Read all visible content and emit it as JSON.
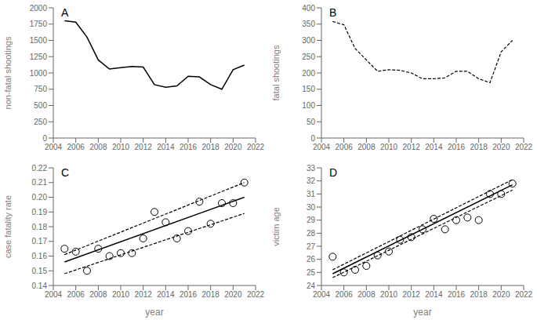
{
  "chart_data": [
    {
      "type": "line",
      "title": "A",
      "ylabel": "non-fatal shootings",
      "xlim": [
        2004,
        2022
      ],
      "xticks": [
        2004,
        2006,
        2008,
        2010,
        2012,
        2014,
        2016,
        2018,
        2020,
        2022
      ],
      "ylim": [
        0,
        2000
      ],
      "yticks": [
        0,
        250,
        500,
        750,
        1000,
        1250,
        1500,
        1750,
        2000
      ],
      "grid": false,
      "series": [
        {
          "x": [
            2005,
            2006,
            2007,
            2008,
            2009,
            2010,
            2011,
            2012,
            2013,
            2014,
            2015,
            2016,
            2017,
            2018,
            2019,
            2020,
            2021
          ],
          "values": [
            1800,
            1780,
            1550,
            1200,
            1060,
            1080,
            1100,
            1090,
            820,
            780,
            800,
            950,
            940,
            820,
            750,
            1050,
            1120
          ],
          "color": "#000000",
          "line_style": "solid"
        }
      ]
    },
    {
      "type": "line",
      "title": "B",
      "ylabel": "fatal shootings",
      "xlim": [
        2004,
        2022
      ],
      "xticks": [
        2004,
        2006,
        2008,
        2010,
        2012,
        2014,
        2016,
        2018,
        2020,
        2022
      ],
      "ylim": [
        0,
        400
      ],
      "yticks": [
        0,
        50,
        100,
        150,
        200,
        250,
        300,
        350,
        400
      ],
      "grid": false,
      "series": [
        {
          "x": [
            2005,
            2006,
            2007,
            2008,
            2009,
            2010,
            2011,
            2012,
            2013,
            2014,
            2015,
            2016,
            2017,
            2018,
            2019,
            2020,
            2021
          ],
          "values": [
            358,
            348,
            275,
            240,
            205,
            210,
            208,
            200,
            182,
            182,
            185,
            205,
            205,
            182,
            170,
            265,
            300
          ],
          "color": "#000000",
          "line_style": "dashed"
        }
      ]
    },
    {
      "type": "scatter",
      "title": "C",
      "xlabel": "year",
      "ylabel": "case fatality rate",
      "xlim": [
        2004,
        2022
      ],
      "xticks": [
        2004,
        2006,
        2008,
        2010,
        2012,
        2014,
        2016,
        2018,
        2020,
        2022
      ],
      "ylim": [
        0.14,
        0.22
      ],
      "yticks": [
        0.14,
        0.15,
        0.16,
        0.17,
        0.18,
        0.19,
        {
          "value": 0.2,
          "label": "0.20"
        },
        0.21,
        0.22
      ],
      "grid": false,
      "series": [
        {
          "type": "line",
          "x": [
            2005,
            2021
          ],
          "values": [
            0.156,
            0.2
          ],
          "color": "#000000",
          "line_style": "solid"
        },
        {
          "type": "line",
          "x": [
            2005,
            2021
          ],
          "values": [
            0.161,
            0.21
          ],
          "color": "#000000",
          "line_style": "dashed"
        },
        {
          "type": "line",
          "x": [
            2005,
            2021
          ],
          "values": [
            0.148,
            0.189
          ],
          "color": "#000000",
          "line_style": "dashed"
        },
        {
          "type": "scatter",
          "x": [
            2005,
            2006,
            2007,
            2008,
            2009,
            2010,
            2011,
            2012,
            2013,
            2014,
            2015,
            2016,
            2017,
            2018,
            2019,
            2020,
            2021
          ],
          "values": [
            0.165,
            0.163,
            0.15,
            0.165,
            0.16,
            0.162,
            0.162,
            0.172,
            0.19,
            0.183,
            0.172,
            0.177,
            0.197,
            0.182,
            0.196,
            0.196,
            0.21
          ],
          "color": "#000000",
          "marker": "circle"
        }
      ]
    },
    {
      "type": "scatter",
      "title": "D",
      "xlabel": "year",
      "ylabel": "victim age",
      "xlim": [
        2004,
        2022
      ],
      "xticks": [
        2004,
        2006,
        2008,
        2010,
        2012,
        2014,
        2016,
        2018,
        2020,
        2022
      ],
      "ylim": [
        24,
        33
      ],
      "yticks": [
        24,
        25,
        26,
        27,
        28,
        29,
        30,
        31,
        32,
        33
      ],
      "grid": false,
      "series": [
        {
          "type": "line",
          "x": [
            2005,
            2021
          ],
          "values": [
            24.9,
            31.7
          ],
          "color": "#000000",
          "line_style": "solid"
        },
        {
          "type": "line",
          "x": [
            2005,
            2021
          ],
          "values": [
            25.2,
            32.1
          ],
          "color": "#000000",
          "line_style": "dashed"
        },
        {
          "type": "line",
          "x": [
            2005,
            2021
          ],
          "values": [
            24.6,
            31.3
          ],
          "color": "#000000",
          "line_style": "dashed"
        },
        {
          "type": "scatter",
          "x": [
            2005,
            2006,
            2007,
            2008,
            2009,
            2010,
            2011,
            2012,
            2013,
            2014,
            2015,
            2016,
            2017,
            2018,
            2019,
            2020,
            2021
          ],
          "values": [
            26.2,
            25.0,
            25.2,
            25.5,
            26.3,
            26.6,
            27.5,
            27.7,
            28.3,
            29.1,
            28.3,
            29.0,
            29.2,
            29.0,
            31.0,
            31.0,
            31.8
          ],
          "color": "#000000",
          "marker": "circle"
        }
      ]
    }
  ]
}
